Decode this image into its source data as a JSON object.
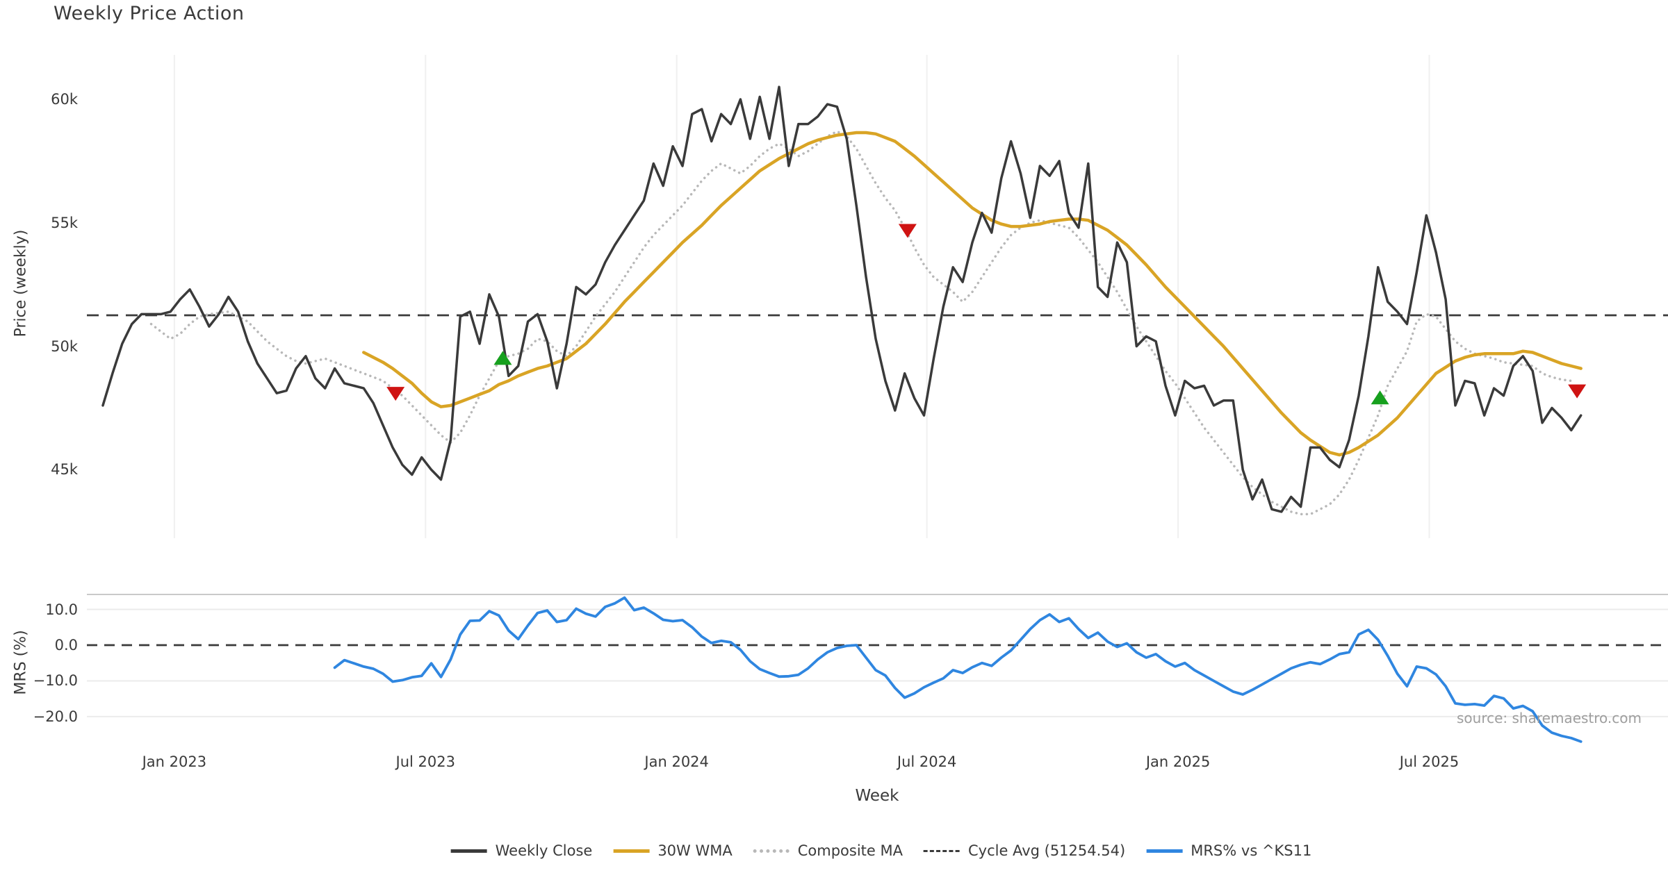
{
  "title": "Weekly Price Action",
  "source": "source: sharemaestro.com",
  "colors": {
    "weekly_close": "#3a3a3a",
    "wma30": "#d9a425",
    "composite": "#b8b8b8",
    "cycle_avg": "#3a3a3a",
    "mrs": "#2f86e0",
    "buy_marker": "#17a01e",
    "sell_marker": "#cf1312",
    "grid_vertical": "#f0f0f0",
    "grid_horizontal": "#ebebeb",
    "panel_border": "#c9c9c9",
    "source_text": "#9e9e9e"
  },
  "legend": [
    {
      "label": "Weekly Close",
      "color": "#3a3a3a",
      "style": "solid"
    },
    {
      "label": "30W WMA",
      "color": "#d9a425",
      "style": "solid"
    },
    {
      "label": "Composite MA",
      "color": "#b8b8b8",
      "style": "dotted"
    },
    {
      "label": "Cycle Avg (51254.54)",
      "color": "#3a3a3a",
      "style": "dashed"
    },
    {
      "label": "MRS% vs ^KS11",
      "color": "#2f86e0",
      "style": "solid"
    }
  ],
  "chart_data": {
    "type": "line",
    "title": "Weekly Price Action",
    "x_axis": {
      "label": "Week",
      "ticks": [
        {
          "label": "Jan 2023",
          "week": 7.4
        },
        {
          "label": "Jul 2023",
          "week": 33.4
        },
        {
          "label": "Jan 2024",
          "week": 59.4
        },
        {
          "label": "Jul 2024",
          "week": 85.3
        },
        {
          "label": "Jan 2025",
          "week": 111.3
        },
        {
          "label": "Jul 2025",
          "week": 137.3
        }
      ],
      "grid": true
    },
    "price_panel": {
      "ylabel": "Price (weekly)",
      "unit": "thousands",
      "ylim": [
        43,
        61.5
      ],
      "yticks": [
        {
          "label": "60k",
          "value": 60
        },
        {
          "label": "55k",
          "value": 55
        },
        {
          "label": "50k",
          "value": 50
        },
        {
          "label": "45k",
          "value": 45
        }
      ],
      "cycle_avg_value": 51254.54,
      "cycle_avg_k": 51.25454,
      "series": [
        {
          "name": "Weekly Close",
          "style": "solid",
          "color": "#3a3a3a",
          "width": 3.5,
          "start_week": 0,
          "values": [
            47.6,
            48.9,
            50.1,
            50.9,
            51.3,
            51.3,
            51.3,
            51.4,
            51.9,
            52.3,
            51.6,
            50.8,
            51.3,
            52.0,
            51.4,
            50.2,
            49.3,
            48.7,
            48.1,
            48.2,
            49.1,
            49.6,
            48.7,
            48.3,
            49.1,
            48.5,
            48.4,
            48.3,
            47.7,
            46.8,
            45.9,
            45.2,
            44.8,
            45.5,
            45.0,
            44.6,
            46.2,
            51.2,
            51.4,
            50.1,
            52.1,
            51.2,
            48.8,
            49.2,
            51.0,
            51.3,
            50.2,
            48.3,
            50.1,
            52.4,
            52.1,
            52.5,
            53.4,
            54.1,
            54.7,
            55.3,
            55.9,
            57.4,
            56.5,
            58.1,
            57.3,
            59.4,
            59.6,
            58.3,
            59.4,
            59.0,
            60.0,
            58.4,
            60.1,
            58.4,
            60.5,
            57.3,
            59.0,
            59.0,
            59.3,
            59.8,
            59.7,
            58.4,
            55.7,
            52.8,
            50.3,
            48.6,
            47.4,
            48.9,
            47.9,
            47.2,
            49.5,
            51.6,
            53.2,
            52.6,
            54.2,
            55.4,
            54.6,
            56.8,
            58.3,
            57.0,
            55.2,
            57.3,
            56.9,
            57.5,
            55.4,
            54.8,
            57.4,
            52.4,
            52.0,
            54.2,
            53.4,
            50.0,
            50.4,
            50.2,
            48.4,
            47.2,
            48.6,
            48.3,
            48.4,
            47.6,
            47.8,
            47.8,
            45.0,
            43.8,
            44.6,
            43.4,
            43.3,
            43.9,
            43.5,
            45.9,
            45.9,
            45.4,
            45.1,
            46.2,
            48.0,
            50.4,
            53.2,
            51.8,
            51.4,
            50.9,
            53.0,
            55.3,
            53.8,
            51.9,
            47.6,
            48.6,
            48.5,
            47.2,
            48.3,
            48.0,
            49.2,
            49.6,
            49.0,
            46.9,
            47.5,
            47.1,
            46.6,
            47.2
          ]
        },
        {
          "name": "30W WMA",
          "style": "solid",
          "color": "#d9a425",
          "width": 4.5,
          "start_week": 27,
          "values": [
            49.75,
            49.55,
            49.35,
            49.1,
            48.8,
            48.5,
            48.1,
            47.75,
            47.55,
            47.6,
            47.75,
            47.9,
            48.05,
            48.2,
            48.45,
            48.6,
            48.8,
            48.95,
            49.1,
            49.2,
            49.35,
            49.5,
            49.8,
            50.1,
            50.5,
            50.9,
            51.35,
            51.8,
            52.2,
            52.6,
            53.0,
            53.4,
            53.8,
            54.2,
            54.55,
            54.9,
            55.3,
            55.7,
            56.05,
            56.4,
            56.75,
            57.1,
            57.35,
            57.6,
            57.8,
            58.0,
            58.2,
            58.35,
            58.45,
            58.55,
            58.6,
            58.65,
            58.65,
            58.6,
            58.45,
            58.3,
            58.0,
            57.7,
            57.35,
            57.0,
            56.65,
            56.3,
            55.95,
            55.6,
            55.35,
            55.1,
            54.95,
            54.85,
            54.85,
            54.9,
            54.95,
            55.05,
            55.1,
            55.15,
            55.15,
            55.1,
            54.9,
            54.7,
            54.4,
            54.1,
            53.7,
            53.3,
            52.85,
            52.4,
            52.0,
            51.6,
            51.2,
            50.8,
            50.4,
            50.0,
            49.55,
            49.1,
            48.65,
            48.2,
            47.75,
            47.3,
            46.9,
            46.5,
            46.2,
            45.95,
            45.7,
            45.6,
            45.7,
            45.9,
            46.15,
            46.4,
            46.75,
            47.1,
            47.55,
            48.0,
            48.45,
            48.9,
            49.15,
            49.4,
            49.55,
            49.65,
            49.7,
            49.7,
            49.7,
            49.7,
            49.8,
            49.75,
            49.6,
            49.45,
            49.3,
            49.2,
            49.1
          ]
        },
        {
          "name": "Composite MA",
          "style": "dotted",
          "color": "#b8b8b8",
          "width": 3.5,
          "start_week": 5,
          "values": [
            50.9,
            50.6,
            50.3,
            50.5,
            50.9,
            51.2,
            51.3,
            51.35,
            51.4,
            51.2,
            51.0,
            50.6,
            50.2,
            49.9,
            49.6,
            49.4,
            49.3,
            49.4,
            49.5,
            49.35,
            49.2,
            49.05,
            48.9,
            48.75,
            48.6,
            48.3,
            48.0,
            47.6,
            47.2,
            46.8,
            46.4,
            46.1,
            46.5,
            47.2,
            48.0,
            48.7,
            49.4,
            49.6,
            49.7,
            49.9,
            50.3,
            50.2,
            49.8,
            49.6,
            50.0,
            50.6,
            51.2,
            51.7,
            52.2,
            52.8,
            53.4,
            54.0,
            54.5,
            54.9,
            55.3,
            55.7,
            56.2,
            56.7,
            57.1,
            57.4,
            57.2,
            57.0,
            57.3,
            57.7,
            58.0,
            58.2,
            58.0,
            57.7,
            57.9,
            58.2,
            58.5,
            58.7,
            58.5,
            58.0,
            57.3,
            56.6,
            56.0,
            55.5,
            54.8,
            54.0,
            53.3,
            52.8,
            52.5,
            52.2,
            51.8,
            52.2,
            52.8,
            53.4,
            54.0,
            54.5,
            54.8,
            55.0,
            55.1,
            55.0,
            54.9,
            54.8,
            54.4,
            53.9,
            53.4,
            52.8,
            52.2,
            51.5,
            50.8,
            50.2,
            49.6,
            49.0,
            48.5,
            47.9,
            47.3,
            46.7,
            46.2,
            45.7,
            45.2,
            44.7,
            44.3,
            44.0,
            43.7,
            43.5,
            43.3,
            43.2,
            43.2,
            43.4,
            43.6,
            44.0,
            44.6,
            45.4,
            46.3,
            47.2,
            48.4,
            49.1,
            49.8,
            51.0,
            51.3,
            51.2,
            50.7,
            50.2,
            49.9,
            49.7,
            49.6,
            49.5,
            49.35,
            49.3,
            49.25,
            49.2,
            48.9,
            48.75,
            48.65,
            48.6
          ]
        }
      ],
      "markers": [
        {
          "type": "sell",
          "shape": "triangle-down",
          "week": 30.3,
          "value": 48.1,
          "color": "#cf1312"
        },
        {
          "type": "buy",
          "shape": "triangle-up",
          "week": 41.4,
          "value": 49.5,
          "color": "#17a01e"
        },
        {
          "type": "sell",
          "shape": "triangle-down",
          "week": 83.3,
          "value": 54.7,
          "color": "#cf1312"
        },
        {
          "type": "buy",
          "shape": "triangle-up",
          "week": 132.2,
          "value": 47.9,
          "color": "#17a01e"
        },
        {
          "type": "sell",
          "shape": "triangle-down",
          "week": 152.6,
          "value": 48.2,
          "color": "#cf1312"
        }
      ]
    },
    "mrs_panel": {
      "ylabel": "MRS (%)",
      "ylim": [
        -28,
        15
      ],
      "yticks": [
        {
          "label": "10.0",
          "value": 10
        },
        {
          "label": "0.0",
          "value": 0
        },
        {
          "label": "−10.0",
          "value": -10
        },
        {
          "label": "−20.0",
          "value": -20
        }
      ],
      "zero_line": 0,
      "grid_values": [
        10,
        -10,
        -20
      ],
      "series": [
        {
          "name": "MRS% vs ^KS11",
          "style": "solid",
          "color": "#2f86e0",
          "width": 3.8,
          "start_week": 24,
          "values": [
            -6.3,
            -4.2,
            -5.1,
            -6.0,
            -6.6,
            -8.0,
            -10.2,
            -9.8,
            -9.0,
            -8.6,
            -5.1,
            -8.9,
            -4.0,
            3.0,
            6.8,
            6.9,
            9.5,
            8.3,
            4.1,
            1.7,
            5.5,
            9.0,
            9.7,
            6.5,
            7.0,
            10.2,
            8.8,
            8.0,
            10.7,
            11.7,
            13.3,
            9.8,
            10.5,
            8.9,
            7.1,
            6.7,
            7.0,
            5.0,
            2.4,
            0.6,
            1.2,
            0.8,
            -1.3,
            -4.5,
            -6.7,
            -7.8,
            -8.8,
            -8.7,
            -8.3,
            -6.5,
            -4.0,
            -2.0,
            -0.8,
            -0.2,
            0.0,
            -3.5,
            -7.0,
            -8.5,
            -12.0,
            -14.7,
            -13.5,
            -11.8,
            -10.5,
            -9.3,
            -7.0,
            -7.8,
            -6.2,
            -5.0,
            -5.8,
            -3.5,
            -1.5,
            1.5,
            4.5,
            7.0,
            8.6,
            6.5,
            7.5,
            4.5,
            2.0,
            3.5,
            1.0,
            -0.5,
            0.5,
            -2.0,
            -3.5,
            -2.5,
            -4.5,
            -6.0,
            -5.0,
            -7.0,
            -8.5,
            -10.0,
            -11.5,
            -13.0,
            -13.8,
            -12.5,
            -11.0,
            -9.5,
            -8.0,
            -6.5,
            -5.5,
            -4.8,
            -5.3,
            -4.0,
            -2.5,
            -2.0,
            3.0,
            4.3,
            1.5,
            -3.0,
            -8.0,
            -11.5,
            -6.0,
            -6.5,
            -8.2,
            -11.5,
            -16.3,
            -16.7,
            -16.5,
            -16.9,
            -14.2,
            -14.9,
            -17.7,
            -17.0,
            -18.5,
            -22.5,
            -24.5,
            -25.4,
            -26.0,
            -27.0
          ]
        }
      ]
    }
  }
}
